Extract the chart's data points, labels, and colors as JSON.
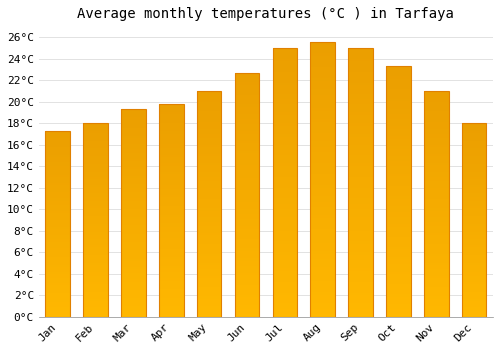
{
  "title": "Average monthly temperatures (°C ) in Tarfaya",
  "months": [
    "Jan",
    "Feb",
    "Mar",
    "Apr",
    "May",
    "Jun",
    "Jul",
    "Aug",
    "Sep",
    "Oct",
    "Nov",
    "Dec"
  ],
  "values": [
    17.3,
    18.0,
    19.3,
    19.8,
    21.0,
    22.7,
    25.0,
    25.5,
    25.0,
    23.3,
    21.0,
    18.0
  ],
  "bar_color_top": "#FFB700",
  "bar_color_bottom": "#FFA500",
  "bar_color_edge": "#E08000",
  "background_color": "#FFFFFF",
  "grid_color": "#DDDDDD",
  "ylim": [
    0,
    27
  ],
  "ytick_step": 2,
  "title_fontsize": 10,
  "tick_fontsize": 8,
  "tick_font_family": "monospace"
}
